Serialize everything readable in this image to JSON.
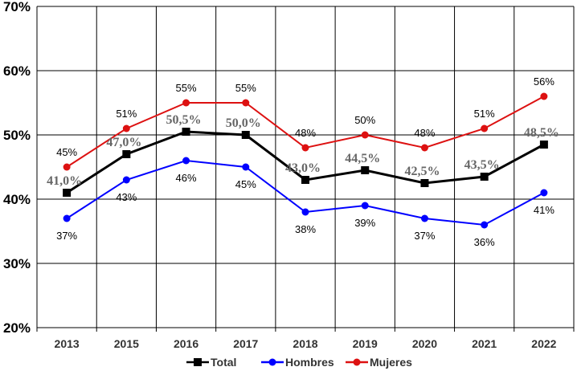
{
  "chart_data": {
    "type": "line",
    "categories": [
      "2013",
      "2015",
      "2016",
      "2017",
      "2018",
      "2019",
      "2020",
      "2021",
      "2022"
    ],
    "ylim": [
      20,
      70
    ],
    "yticks": [
      "20%",
      "30%",
      "40%",
      "50%",
      "60%",
      "70%"
    ],
    "grid": true,
    "legend_position": "bottom",
    "series": [
      {
        "name": "Total",
        "color": "#000000",
        "marker": "square",
        "values": [
          41.0,
          47.0,
          50.5,
          50.0,
          43.0,
          44.5,
          42.5,
          43.5,
          48.5
        ],
        "labels": [
          "41,0%",
          "47,0%",
          "50,5%",
          "50,0%",
          "43,0%",
          "44,5%",
          "42,5%",
          "43,5%",
          "48,5%"
        ]
      },
      {
        "name": "Hombres",
        "color": "#0000ff",
        "marker": "circle",
        "values": [
          37,
          43,
          46,
          45,
          38,
          39,
          37,
          36,
          41
        ],
        "labels": [
          "37%",
          "43%",
          "46%",
          "45%",
          "38%",
          "39%",
          "37%",
          "36%",
          "41%"
        ]
      },
      {
        "name": "Mujeres",
        "color": "#dd1111",
        "marker": "circle",
        "values": [
          45,
          51,
          55,
          55,
          48,
          50,
          48,
          51,
          56
        ],
        "labels": [
          "45%",
          "51%",
          "55%",
          "55%",
          "48%",
          "50%",
          "48%",
          "51%",
          "56%"
        ]
      }
    ]
  }
}
